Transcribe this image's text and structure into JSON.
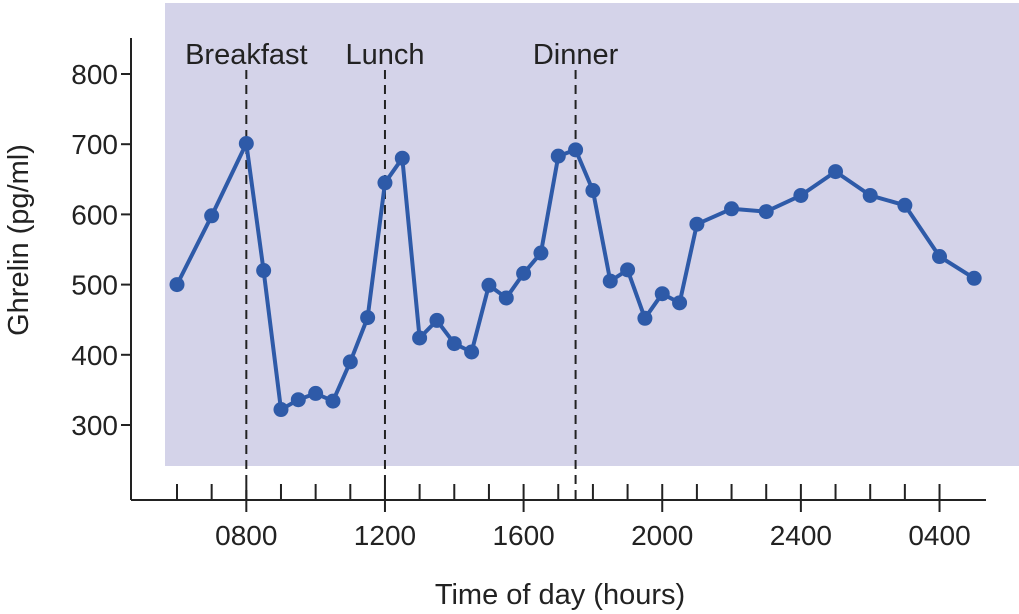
{
  "chart_data": {
    "type": "line",
    "title": "",
    "xlabel": "Time of day (hours)",
    "ylabel": "Ghrelin (pg/ml)",
    "ylim": [
      250,
      850
    ],
    "xlim": [
      -3,
      96
    ],
    "x_ticks": [
      {
        "x": 24,
        "label": "0800"
      },
      {
        "x": 40,
        "label": "1200"
      },
      {
        "x": 56,
        "label": "1600"
      },
      {
        "x": 72,
        "label": "2000"
      },
      {
        "x": 88,
        "label": "2400"
      },
      {
        "x": 104,
        "label": "0400"
      }
    ],
    "x_minor_ticks": [
      16,
      20,
      28,
      32,
      36,
      44,
      48,
      52,
      60,
      64,
      68,
      76,
      80,
      84,
      92,
      96,
      100
    ],
    "y_ticks": [
      300,
      400,
      500,
      600,
      700,
      800
    ],
    "note_x_units": "quarter-hours from 0400",
    "series": [
      {
        "name": "",
        "color": "#2e5aa8",
        "points": [
          [
            6,
            500
          ],
          [
            8,
            598
          ],
          [
            10,
            701
          ],
          [
            11,
            520
          ],
          [
            12,
            322
          ],
          [
            13,
            336
          ],
          [
            14,
            345
          ],
          [
            15,
            334
          ],
          [
            16,
            390
          ],
          [
            17,
            453
          ],
          [
            18,
            645
          ],
          [
            19,
            680
          ],
          [
            20,
            424
          ],
          [
            21,
            449
          ],
          [
            22,
            416
          ],
          [
            23,
            404
          ],
          [
            24,
            499
          ],
          [
            25,
            481
          ],
          [
            26,
            516
          ],
          [
            27,
            545
          ],
          [
            28,
            683
          ],
          [
            29,
            692
          ],
          [
            30,
            634
          ],
          [
            31,
            505
          ],
          [
            32,
            521
          ],
          [
            33,
            452
          ],
          [
            34,
            487
          ],
          [
            35,
            474
          ],
          [
            36,
            586
          ],
          [
            38,
            608
          ],
          [
            40,
            604
          ],
          [
            42,
            627
          ],
          [
            44,
            661
          ],
          [
            46,
            627
          ],
          [
            48,
            613
          ],
          [
            50,
            540
          ],
          [
            52,
            509
          ]
        ]
      }
    ],
    "meals": [
      {
        "label": "Breakfast",
        "x": 10
      },
      {
        "label": "Lunch",
        "x": 18
      },
      {
        "label": "Dinner",
        "x": 29
      }
    ],
    "background_color": "#d4d3e9",
    "grid": false,
    "legend": "none"
  }
}
